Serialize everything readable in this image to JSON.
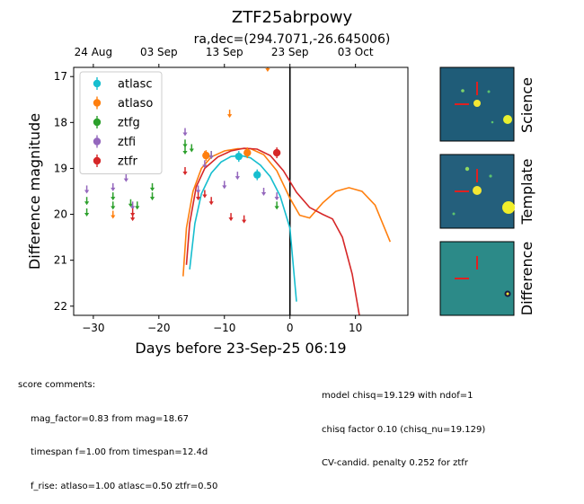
{
  "chart_data": {
    "type": "scatter",
    "title": "ZTF25abrpowy",
    "subtitle": "ra,dec=(294.7071,-26.645006)",
    "xlabel": "Days before 23-Sep-25 06:19",
    "ylabel": "Difference magnitude",
    "xlim": [
      -33,
      18
    ],
    "ylim": [
      22.2,
      16.8
    ],
    "y_inverted": true,
    "x_ticks": [
      -30,
      -20,
      -10,
      0,
      10
    ],
    "y_ticks": [
      17,
      18,
      19,
      20,
      21,
      22
    ],
    "top_axis_ticks": [
      {
        "label": "24 Aug",
        "x": -30
      },
      {
        "label": "03 Sep",
        "x": -20
      },
      {
        "label": "13 Sep",
        "x": -10
      },
      {
        "label": "23 Sep",
        "x": 0
      },
      {
        "label": "03 Oct",
        "x": 10
      }
    ],
    "vline_x": 0,
    "legend_placement": "top-left",
    "series": [
      {
        "name": "atlasc",
        "color": "#17becf",
        "detections": [
          {
            "x": -7.8,
            "y": 18.74
          },
          {
            "x": -5.0,
            "y": 19.14
          }
        ],
        "upper_limits": [],
        "model": [
          {
            "x": -15.3,
            "y": 21.2
          },
          {
            "x": -14.5,
            "y": 20.2
          },
          {
            "x": -13.5,
            "y": 19.55
          },
          {
            "x": -12.0,
            "y": 19.1
          },
          {
            "x": -10.5,
            "y": 18.86
          },
          {
            "x": -9.0,
            "y": 18.74
          },
          {
            "x": -7.5,
            "y": 18.72
          },
          {
            "x": -6.0,
            "y": 18.77
          },
          {
            "x": -4.5,
            "y": 18.93
          },
          {
            "x": -3.0,
            "y": 19.18
          },
          {
            "x": -1.5,
            "y": 19.6
          },
          {
            "x": 0.0,
            "y": 20.3
          },
          {
            "x": 1.0,
            "y": 21.9
          }
        ]
      },
      {
        "name": "atlaso",
        "color": "#ff7f0e",
        "detections": [
          {
            "x": -12.8,
            "y": 18.72
          },
          {
            "x": -6.5,
            "y": 18.66
          }
        ],
        "upper_limits": [
          {
            "x": -27.0,
            "y": 20.0
          },
          {
            "x": -13.0,
            "y": 18.7
          },
          {
            "x": -9.2,
            "y": 17.8
          },
          {
            "x": -3.4,
            "y": 16.8
          }
        ],
        "model": [
          {
            "x": -16.3,
            "y": 21.35
          },
          {
            "x": -15.8,
            "y": 20.3
          },
          {
            "x": -14.8,
            "y": 19.5
          },
          {
            "x": -13.5,
            "y": 19.0
          },
          {
            "x": -12.0,
            "y": 18.75
          },
          {
            "x": -10.0,
            "y": 18.62
          },
          {
            "x": -8.0,
            "y": 18.57
          },
          {
            "x": -6.0,
            "y": 18.57
          },
          {
            "x": -4.0,
            "y": 18.7
          },
          {
            "x": -2.0,
            "y": 19.05
          },
          {
            "x": 0.0,
            "y": 19.65
          },
          {
            "x": 1.5,
            "y": 20.02
          },
          {
            "x": 3.0,
            "y": 20.08
          },
          {
            "x": 5.0,
            "y": 19.75
          },
          {
            "x": 7.0,
            "y": 19.5
          },
          {
            "x": 9.0,
            "y": 19.42
          },
          {
            "x": 11.0,
            "y": 19.5
          },
          {
            "x": 13.0,
            "y": 19.8
          },
          {
            "x": 15.3,
            "y": 20.6
          }
        ]
      },
      {
        "name": "ztfg",
        "color": "#2ca02c",
        "detections": [],
        "upper_limits": [
          {
            "x": -31.0,
            "y": 19.7
          },
          {
            "x": -31.0,
            "y": 19.95
          },
          {
            "x": -27.0,
            "y": 19.6
          },
          {
            "x": -27.0,
            "y": 19.8
          },
          {
            "x": -24.3,
            "y": 19.75
          },
          {
            "x": -23.3,
            "y": 19.8
          },
          {
            "x": -21.0,
            "y": 19.4
          },
          {
            "x": -21.0,
            "y": 19.6
          },
          {
            "x": -16.0,
            "y": 18.45
          },
          {
            "x": -16.0,
            "y": 18.6
          },
          {
            "x": -15.0,
            "y": 18.55
          },
          {
            "x": -12.0,
            "y": 18.7
          },
          {
            "x": -2.0,
            "y": 19.8
          }
        ],
        "model": []
      },
      {
        "name": "ztfi",
        "color": "#9467bd",
        "detections": [],
        "upper_limits": [
          {
            "x": -31.0,
            "y": 19.45
          },
          {
            "x": -27.0,
            "y": 19.4
          },
          {
            "x": -25.0,
            "y": 19.2
          },
          {
            "x": -24.0,
            "y": 19.8
          },
          {
            "x": -16.0,
            "y": 18.2
          },
          {
            "x": -14.0,
            "y": 19.45
          },
          {
            "x": -13.0,
            "y": 18.9
          },
          {
            "x": -12.0,
            "y": 18.7
          },
          {
            "x": -10.0,
            "y": 19.35
          },
          {
            "x": -8.0,
            "y": 19.15
          },
          {
            "x": -4.0,
            "y": 19.5
          },
          {
            "x": -2.0,
            "y": 19.6
          }
        ],
        "model": []
      },
      {
        "name": "ztfr",
        "color": "#d62728",
        "detections": [
          {
            "x": -2.0,
            "y": 18.66
          }
        ],
        "upper_limits": [
          {
            "x": -24.0,
            "y": 19.95
          },
          {
            "x": -24.0,
            "y": 20.05
          },
          {
            "x": -16.0,
            "y": 19.05
          },
          {
            "x": -14.0,
            "y": 19.6
          },
          {
            "x": -13.0,
            "y": 19.55
          },
          {
            "x": -12.0,
            "y": 19.7
          },
          {
            "x": -9.0,
            "y": 20.05
          },
          {
            "x": -7.0,
            "y": 20.1
          }
        ],
        "model": [
          {
            "x": -15.8,
            "y": 21.1
          },
          {
            "x": -15.3,
            "y": 20.2
          },
          {
            "x": -14.3,
            "y": 19.4
          },
          {
            "x": -13.0,
            "y": 19.0
          },
          {
            "x": -11.0,
            "y": 18.75
          },
          {
            "x": -9.0,
            "y": 18.62
          },
          {
            "x": -7.0,
            "y": 18.56
          },
          {
            "x": -5.0,
            "y": 18.58
          },
          {
            "x": -3.0,
            "y": 18.72
          },
          {
            "x": -1.0,
            "y": 19.05
          },
          {
            "x": 1.0,
            "y": 19.52
          },
          {
            "x": 3.0,
            "y": 19.85
          },
          {
            "x": 5.0,
            "y": 20.0
          },
          {
            "x": 6.5,
            "y": 20.1
          },
          {
            "x": 8.0,
            "y": 20.5
          },
          {
            "x": 9.5,
            "y": 21.3
          },
          {
            "x": 10.6,
            "y": 22.2
          }
        ]
      }
    ]
  },
  "stamps": [
    {
      "label": "Science"
    },
    {
      "label": "Template"
    },
    {
      "label": "Difference"
    }
  ],
  "score_comments": {
    "header": "score comments:",
    "lines": [
      "mag_factor=0.83 from mag=18.67",
      "timespan f=1.00 from timespan=12.4d",
      "f_rise: atlaso=1.00 atlasc=0.50 ztfr=0.50"
    ]
  },
  "model_comments": {
    "lines": [
      "model chisq=19.129 with ndof=1",
      "chisq factor 0.10 (chisq_nu=19.129)",
      "CV-candid. penalty 0.252 for ztfr"
    ]
  }
}
